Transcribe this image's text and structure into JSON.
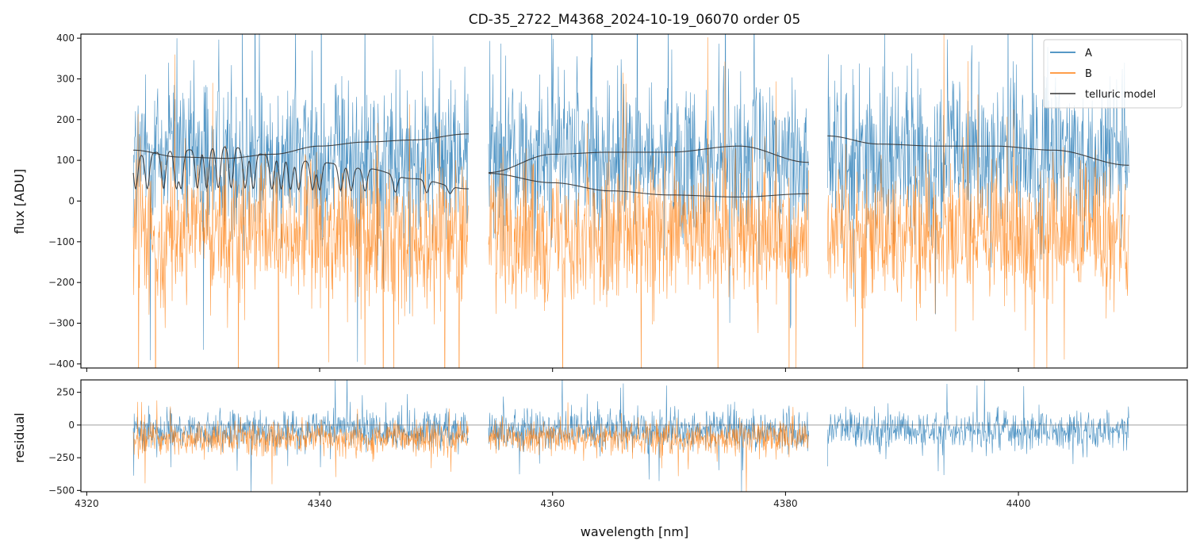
{
  "chart_data": {
    "type": "line",
    "title": "CD-35_2722_M4368_2024-10-19_06070  order 05",
    "xlabel": "wavelength [nm]",
    "colors": {
      "A": "#1f77b4",
      "B": "#ff7f0e",
      "model": "#333333",
      "zero": "#666666"
    },
    "top": {
      "ylabel": "flux [ADU]",
      "ylim": [
        -410,
        410
      ],
      "yticks": [
        -400,
        -300,
        -200,
        -100,
        0,
        100,
        200,
        300,
        400
      ],
      "yticklabels": [
        "−400",
        "−300",
        "−200",
        "−100",
        "0",
        "100",
        "200",
        "300",
        "400"
      ]
    },
    "bottom": {
      "ylabel": "residual",
      "ylim": [
        -510,
        345
      ],
      "yticks": [
        -500,
        -250,
        0,
        250
      ],
      "yticklabels": [
        "−500",
        "−250",
        "0",
        "250"
      ]
    },
    "xlim": [
      4319.5,
      4414.5
    ],
    "xticks": [
      4320,
      4340,
      4360,
      4380,
      4400
    ],
    "xticklabels": [
      "4320",
      "4340",
      "4360",
      "4380",
      "4400"
    ],
    "segments": [
      {
        "x0": 4324.0,
        "x1": 4352.8
      },
      {
        "x0": 4354.5,
        "x1": 4382.0
      },
      {
        "x0": 4383.6,
        "x1": 4409.5
      }
    ],
    "series": [
      {
        "name": "A",
        "segments": [
          0,
          1,
          2
        ],
        "top_mean": 110,
        "top_amp": 300,
        "res_mean": -40,
        "res_amp": 230,
        "res_segments": [
          0,
          1,
          2
        ]
      },
      {
        "name": "B",
        "segments": [
          0,
          1,
          2
        ],
        "top_mean": -80,
        "top_amp": 260,
        "res_mean": -100,
        "res_amp": 200,
        "res_segments": [
          0,
          1
        ]
      }
    ],
    "telluric_model": [
      {
        "segment": 0,
        "x": [
          4324.0,
          4328.0,
          4332.0,
          4336.0,
          4340.0,
          4344.0,
          4348.0,
          4352.8
        ],
        "y": [
          125,
          108,
          105,
          115,
          135,
          145,
          150,
          165
        ]
      },
      {
        "segment": 0,
        "x": [
          4324.0,
          4328.0,
          4332.0,
          4336.0,
          4340.0,
          4344.0,
          4348.0,
          4352.8
        ],
        "y": [
          115,
          125,
          135,
          112,
          95,
          80,
          55,
          30
        ],
        "absorption_lines": [
          4324.2,
          4325.2,
          4326.6,
          4327.7,
          4328.1,
          4329.5,
          4330.3,
          4331.3,
          4332.4,
          4333.6,
          4334.3,
          4335.9,
          4336.7,
          4337.5,
          4338.2,
          4339.4,
          4340.0,
          4341.8,
          4342.7,
          4343.9,
          4346.5,
          4349.2,
          4351.2
        ]
      },
      {
        "segment": 1,
        "x": [
          4354.5,
          4360.0,
          4365.0,
          4370.0,
          4376.0,
          4382.0
        ],
        "y": [
          70,
          115,
          120,
          120,
          135,
          95
        ]
      },
      {
        "segment": 1,
        "x": [
          4354.5,
          4360.0,
          4365.0,
          4370.0,
          4376.0,
          4382.0
        ],
        "y": [
          68,
          45,
          25,
          15,
          10,
          18
        ]
      },
      {
        "segment": 2,
        "x": [
          4383.6,
          4388.0,
          4393.0,
          4398.0,
          4403.0,
          4409.5
        ],
        "y": [
          160,
          140,
          135,
          135,
          125,
          88
        ]
      }
    ],
    "legend": {
      "position": "top-right",
      "entries": [
        "A",
        "B",
        "telluric model"
      ]
    }
  }
}
